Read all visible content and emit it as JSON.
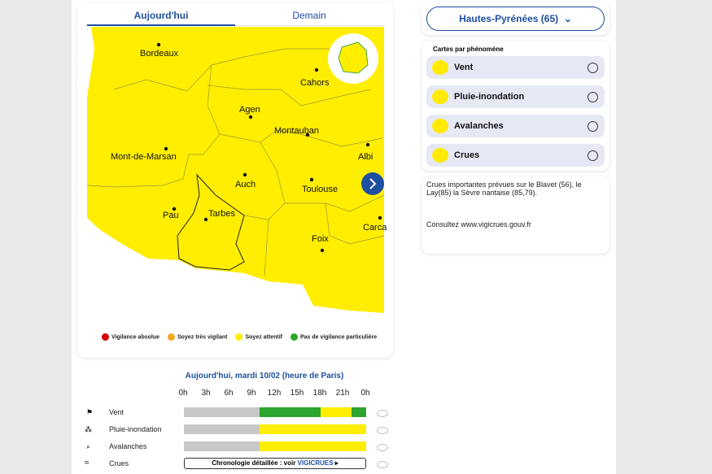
{
  "tabs": [
    "Aujourd'hui",
    "Demain"
  ],
  "map": {
    "cities": [
      "Bordeaux",
      "Cahors",
      "Agen",
      "Montauban",
      "Mont-de-Marsan",
      "Albi",
      "Auch",
      "Toulouse",
      "Pau",
      "Tarbes",
      "Foix",
      "Carca"
    ]
  },
  "legend": [
    "Vigilance absolue",
    "Soyez très vigilant",
    "Soyez attentif",
    "Pas de vigilance particulière"
  ],
  "timeline": {
    "title": "Aujourd'hui, mardi 10/02 (heure de Paris)",
    "hours": [
      "0h",
      "3h",
      "6h",
      "9h",
      "12h",
      "15h",
      "18h",
      "21h",
      "0h"
    ],
    "rows": [
      "Vent",
      "Pluie-inondation",
      "Avalanches",
      "Crues"
    ],
    "crues_link": "Chronologie détaillée : voir",
    "crues_logo": "VIGICRUES"
  },
  "department": "Hautes-Pyrénées (65)",
  "phenomena": {
    "title": "Cartes par phénomène",
    "items": [
      "Vent",
      "Pluie-inondation",
      "Avalanches",
      "Crues"
    ]
  },
  "info": {
    "lines": [
      "Crues importantes prévues sur le Blavet (56), le Lay(85) la Sèvre nantaise (85,79).",
      "Consultez www.vigicrues.gouv.fr"
    ]
  }
}
